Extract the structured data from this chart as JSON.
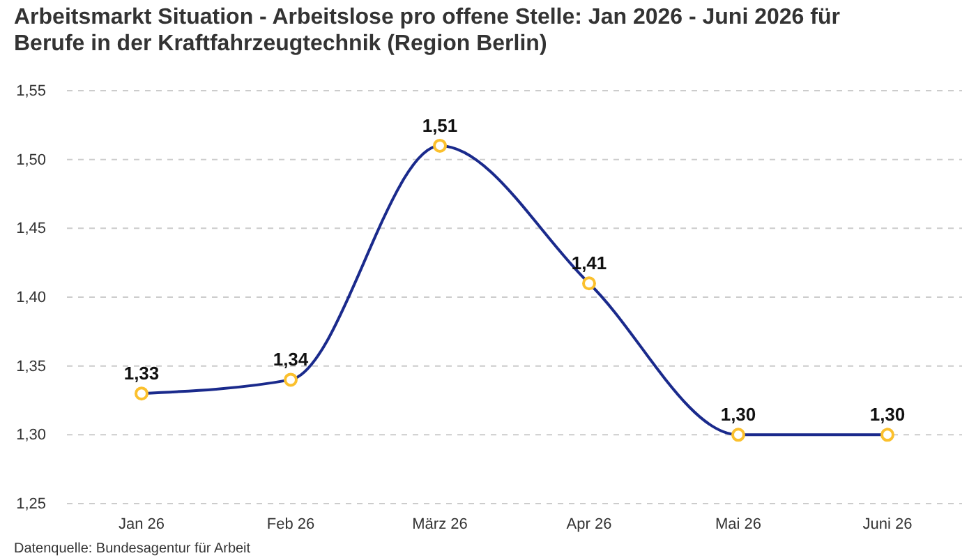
{
  "chart_data": {
    "type": "line",
    "title": "Arbeitsmarkt Situation - Arbeitslose pro offene Stelle: Jan 2026 - Juni 2026 für Berufe in der Kraftfahrzeugtechnik (Region Berlin)",
    "categories": [
      "Jan 26",
      "Feb 26",
      "März 26",
      "Apr 26",
      "Mai 26",
      "Juni 26"
    ],
    "series": [
      {
        "color": "#1a2a8c",
        "values": [
          1.33,
          1.34,
          1.51,
          1.41,
          1.3,
          1.3
        ],
        "value_labels": [
          "1,33",
          "1,34",
          "1,51",
          "1,41",
          "1,30",
          "1,30"
        ]
      }
    ],
    "ylim": [
      1.25,
      1.55
    ],
    "yticks": [
      {
        "value": 1.25,
        "label": "1,25"
      },
      {
        "value": 1.3,
        "label": "1,30"
      },
      {
        "value": 1.35,
        "label": "1,35"
      },
      {
        "value": 1.4,
        "label": "1,40"
      },
      {
        "value": 1.45,
        "label": "1,45"
      },
      {
        "value": 1.5,
        "label": "1,50"
      },
      {
        "value": 1.55,
        "label": "1,55"
      }
    ],
    "grid": "y",
    "marker": "circle",
    "line_style": "solid",
    "annotations": [
      "Datenquelle: Bundesagentur für Arbeit"
    ]
  }
}
